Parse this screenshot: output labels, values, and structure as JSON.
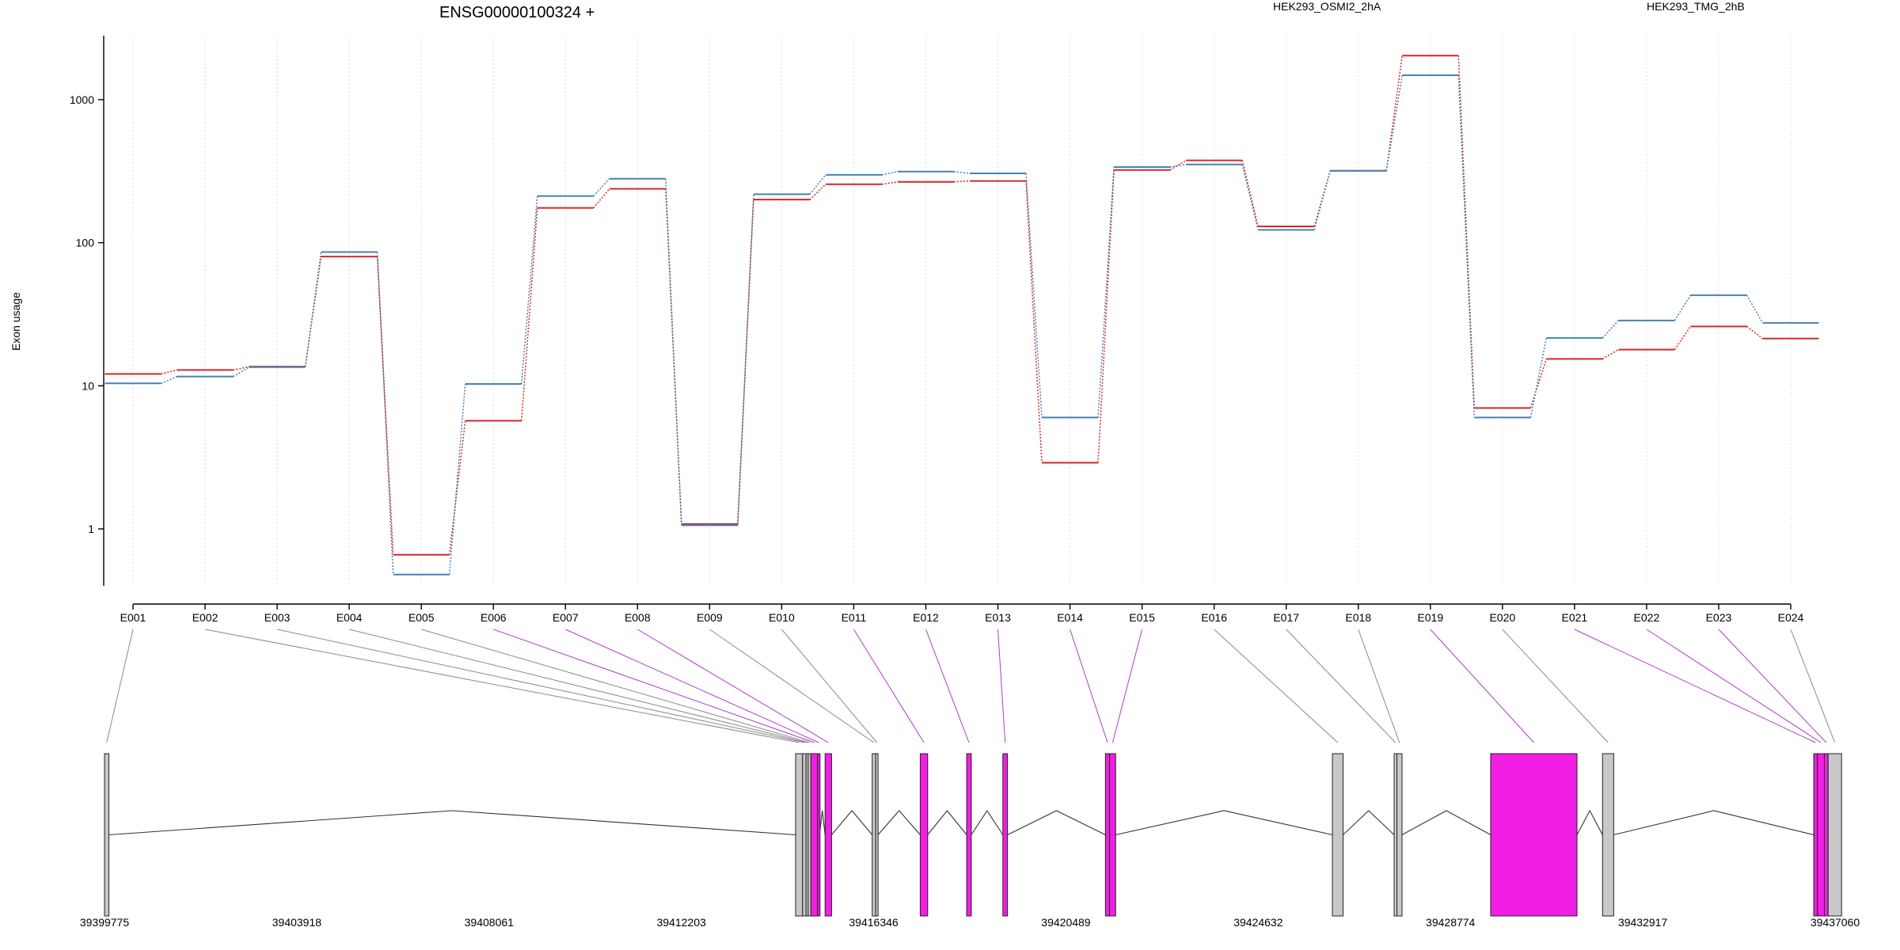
{
  "chart_data": {
    "type": "line",
    "title": "ENSG00000100324 +",
    "ylabel": "Exon usage",
    "yscale": "log",
    "ylim": [
      0.4,
      2800
    ],
    "yticks": [
      1,
      10,
      100,
      1000
    ],
    "grid": "vertical dotted at each exon",
    "legend_position": "top",
    "categories": [
      "E001",
      "E002",
      "E003",
      "E004",
      "E005",
      "E006",
      "E007",
      "E008",
      "E009",
      "E010",
      "E011",
      "E012",
      "E013",
      "E014",
      "E015",
      "E016",
      "E017",
      "E018",
      "E019",
      "E020",
      "E021",
      "E022",
      "E023",
      "E024"
    ],
    "series": [
      {
        "name": "HEK293_OSMI2_2hA",
        "color": "#d62728",
        "values": [
          12.1,
          12.9,
          13.6,
          80,
          0.66,
          5.7,
          175,
          238,
          1.08,
          200,
          256,
          266,
          270,
          2.9,
          322,
          376,
          130,
          318,
          2030,
          7.0,
          15.4,
          17.9,
          26,
          21.4
        ]
      },
      {
        "name": "HEK293_TMG_2hB",
        "color": "#4682b4",
        "values": [
          10.4,
          11.6,
          13.5,
          86,
          0.48,
          10.3,
          212,
          280,
          1.06,
          218,
          298,
          314,
          305,
          6.0,
          338,
          352,
          123,
          318,
          1480,
          6.0,
          21.6,
          28.6,
          43,
          27.5
        ]
      }
    ],
    "gene_model": {
      "axis_ticks": [
        "39399775",
        "39403918",
        "39408061",
        "39412203",
        "39416346",
        "39420489",
        "39424632",
        "39428774",
        "39432917",
        "39437060"
      ],
      "exons": [
        {
          "id": "E001",
          "start": 39399775,
          "end": 39399870,
          "highlight": false
        },
        {
          "id": "E002",
          "start": 39414665,
          "end": 39414815,
          "highlight": false
        },
        {
          "id": "E003",
          "start": 39414815,
          "end": 39414890,
          "highlight": false
        },
        {
          "id": "E004",
          "start": 39414890,
          "end": 39414935,
          "highlight": false
        },
        {
          "id": "E005",
          "start": 39414935,
          "end": 39414995,
          "highlight": false
        },
        {
          "id": "E006",
          "start": 39414995,
          "end": 39415140,
          "highlight": true
        },
        {
          "id": "E007",
          "start": 39415140,
          "end": 39415180,
          "highlight": true
        },
        {
          "id": "E008",
          "start": 39415300,
          "end": 39415440,
          "highlight": true
        },
        {
          "id": "E009",
          "start": 39416315,
          "end": 39416390,
          "highlight": false
        },
        {
          "id": "E010",
          "start": 39416390,
          "end": 39416440,
          "highlight": false
        },
        {
          "id": "E011",
          "start": 39417350,
          "end": 39417510,
          "highlight": true
        },
        {
          "id": "E012",
          "start": 39418350,
          "end": 39418450,
          "highlight": true
        },
        {
          "id": "E013",
          "start": 39419130,
          "end": 39419230,
          "highlight": true
        },
        {
          "id": "E014",
          "start": 39421340,
          "end": 39421430,
          "highlight": true
        },
        {
          "id": "E015",
          "start": 39421430,
          "end": 39421560,
          "highlight": true
        },
        {
          "id": "E016",
          "start": 39426230,
          "end": 39426460,
          "highlight": false
        },
        {
          "id": "E017",
          "start": 39427560,
          "end": 39427620,
          "highlight": false
        },
        {
          "id": "E018",
          "start": 39427620,
          "end": 39427730,
          "highlight": false
        },
        {
          "id": "E019",
          "start": 39429640,
          "end": 39431500,
          "highlight": true
        },
        {
          "id": "E020",
          "start": 39432050,
          "end": 39432290,
          "highlight": false
        },
        {
          "id": "E021",
          "start": 39436600,
          "end": 39436680,
          "highlight": true
        },
        {
          "id": "E022",
          "start": 39436680,
          "end": 39436830,
          "highlight": true
        },
        {
          "id": "E023",
          "start": 39436830,
          "end": 39436910,
          "highlight": true
        },
        {
          "id": "E024",
          "start": 39436910,
          "end": 39437200,
          "highlight": false
        }
      ],
      "introns": [
        [
          39399870,
          39414665
        ],
        [
          39415180,
          39415300
        ],
        [
          39415440,
          39416315
        ],
        [
          39416440,
          39417350
        ],
        [
          39417510,
          39418350
        ],
        [
          39418450,
          39419130
        ],
        [
          39419230,
          39421340
        ],
        [
          39421560,
          39426230
        ],
        [
          39426460,
          39427560
        ],
        [
          39427730,
          39429640
        ],
        [
          39431500,
          39432050
        ],
        [
          39432290,
          39436600
        ]
      ],
      "highlight_color": "#f01fe3",
      "exon_color": "#c8c8c8"
    }
  }
}
